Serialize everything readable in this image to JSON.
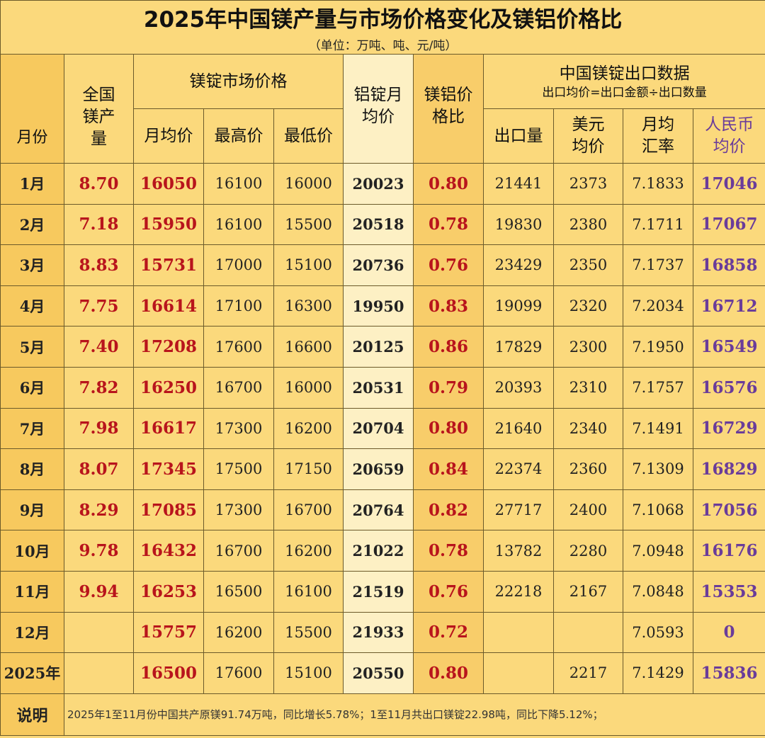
{
  "title": "2025年中国镁产量与市场价格变化及镁铝价格比",
  "subtitle": "（单位：万吨、吨、元/吨）",
  "headers": {
    "month": "月份",
    "production": "全国镁产量",
    "mg_price_group": "镁锭市场价格",
    "avg": "月均价",
    "high": "最高价",
    "low": "最低价",
    "al_price": "铝锭月均价",
    "ratio": "镁铝价格比",
    "export_group": "中国镁锭出口数据",
    "export_formula": "出口均价=出口金额÷出口数量",
    "export_qty": "出口量",
    "usd_price": "美元均价",
    "fx_rate": "月均汇率",
    "rmb_price": "人民币均价"
  },
  "rows": [
    {
      "month": "1月",
      "production": "8.70",
      "avg": "16050",
      "high": "16100",
      "low": "16000",
      "al": "20023",
      "ratio": "0.80",
      "export_qty": "21441",
      "usd": "2373",
      "fx": "7.1833",
      "rmb": "17046"
    },
    {
      "month": "2月",
      "production": "7.18",
      "avg": "15950",
      "high": "16100",
      "low": "15500",
      "al": "20518",
      "ratio": "0.78",
      "export_qty": "19830",
      "usd": "2380",
      "fx": "7.1711",
      "rmb": "17067"
    },
    {
      "month": "3月",
      "production": "8.83",
      "avg": "15731",
      "high": "17000",
      "low": "15100",
      "al": "20736",
      "ratio": "0.76",
      "export_qty": "23429",
      "usd": "2350",
      "fx": "7.1737",
      "rmb": "16858"
    },
    {
      "month": "4月",
      "production": "7.75",
      "avg": "16614",
      "high": "17100",
      "low": "16300",
      "al": "19950",
      "ratio": "0.83",
      "export_qty": "19099",
      "usd": "2320",
      "fx": "7.2034",
      "rmb": "16712"
    },
    {
      "month": "5月",
      "production": "7.40",
      "avg": "17208",
      "high": "17600",
      "low": "16600",
      "al": "20125",
      "ratio": "0.86",
      "export_qty": "17829",
      "usd": "2300",
      "fx": "7.1950",
      "rmb": "16549"
    },
    {
      "month": "6月",
      "production": "7.82",
      "avg": "16250",
      "high": "16700",
      "low": "16000",
      "al": "20531",
      "ratio": "0.79",
      "export_qty": "20393",
      "usd": "2310",
      "fx": "7.1757",
      "rmb": "16576"
    },
    {
      "month": "7月",
      "production": "7.98",
      "avg": "16617",
      "high": "17300",
      "low": "16200",
      "al": "20704",
      "ratio": "0.80",
      "export_qty": "21640",
      "usd": "2340",
      "fx": "7.1491",
      "rmb": "16729"
    },
    {
      "month": "8月",
      "production": "8.07",
      "avg": "17345",
      "high": "17500",
      "low": "17150",
      "al": "20659",
      "ratio": "0.84",
      "export_qty": "22374",
      "usd": "2360",
      "fx": "7.1309",
      "rmb": "16829"
    },
    {
      "month": "9月",
      "production": "8.29",
      "avg": "17085",
      "high": "17300",
      "low": "16700",
      "al": "20764",
      "ratio": "0.82",
      "export_qty": "27717",
      "usd": "2400",
      "fx": "7.1068",
      "rmb": "17056"
    },
    {
      "month": "10月",
      "production": "9.78",
      "avg": "16432",
      "high": "16700",
      "low": "16200",
      "al": "21022",
      "ratio": "0.78",
      "export_qty": "13782",
      "usd": "2280",
      "fx": "7.0948",
      "rmb": "16176"
    },
    {
      "month": "11月",
      "production": "9.94",
      "avg": "16253",
      "high": "16500",
      "low": "16100",
      "al": "21519",
      "ratio": "0.76",
      "export_qty": "22218",
      "usd": "2167",
      "fx": "7.0848",
      "rmb": "15353"
    },
    {
      "month": "12月",
      "production": "",
      "avg": "15757",
      "high": "16200",
      "low": "15500",
      "al": "21933",
      "ratio": "0.72",
      "export_qty": "",
      "usd": "",
      "fx": "7.0593",
      "rmb": "0"
    },
    {
      "month": "2025年",
      "production": "",
      "avg": "16500",
      "high": "17600",
      "low": "15100",
      "al": "20550",
      "ratio": "0.80",
      "export_qty": "",
      "usd": "2217",
      "fx": "7.1429",
      "rmb": "15836"
    }
  ],
  "note": {
    "label": "说明",
    "text": "2025年1至11月份中国共产原镁91.74万吨，同比增长5.78%；1至11月共出口镁锭22.98吨，同比下降5.12%；"
  }
}
